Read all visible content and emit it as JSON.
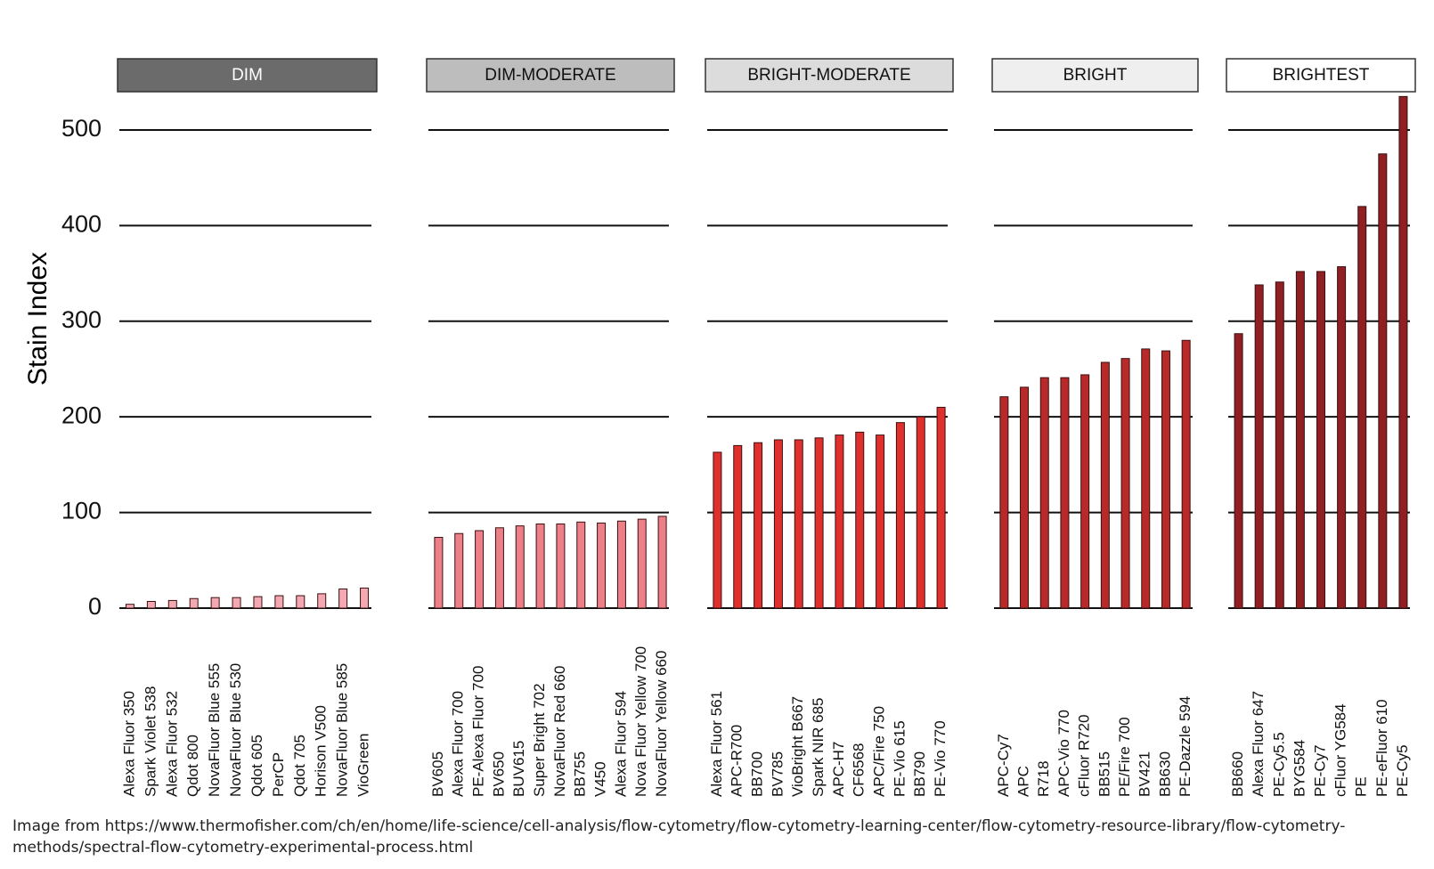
{
  "chart_data": [
    {
      "type": "bar",
      "title": "DIM",
      "ylabel": "Stain Index",
      "color": "#f4a9b2",
      "categories": [
        "Alexa Fluor 350",
        "Spark Violet 538",
        "Alexa Fluor 532",
        "Qdot 800",
        "NovaFluor Blue 555",
        "NovaFluor Blue 530",
        "Qdot 605",
        "PerCP",
        "Qdot 705",
        "Horison V500",
        "NovaFluor Blue 585",
        "VioGreen"
      ],
      "values": [
        4,
        7,
        8,
        10,
        11,
        11,
        12,
        13,
        13,
        15,
        20,
        21
      ],
      "ylim": [
        0,
        540
      ],
      "yticks": [
        0,
        100,
        200,
        300,
        400,
        500
      ],
      "grid": true
    },
    {
      "type": "bar",
      "title": "DIM-MODERATE",
      "color": "#ec7f88",
      "categories": [
        "BV605",
        "Alexa Fluor 700",
        "PE-Alexa Fluor 700",
        "BV650",
        "BUV615",
        "Super Bright 702",
        "NovaFluor Red 660",
        "BB755",
        "V450",
        "Alexa Fluor 594",
        "Nova Fluor Yellow 700",
        "NovaFluor Yellow 660"
      ],
      "values": [
        74,
        78,
        81,
        84,
        86,
        88,
        88,
        90,
        89,
        91,
        93,
        96
      ],
      "ylim": [
        0,
        540
      ],
      "yticks": [
        0,
        100,
        200,
        300,
        400,
        500
      ],
      "grid": true
    },
    {
      "type": "bar",
      "title": "BRIGHT-MODERATE",
      "color": "#e0302e",
      "categories": [
        "Alexa Fluor 561",
        "APC-R700",
        "BB700",
        "BV785",
        "VioBright B667",
        "Spark NIR 685",
        "APC-H7",
        "CF6568",
        "APC/Fire 750",
        "PE-Vio 615",
        "BB790",
        "PE-Vio 770"
      ],
      "values": [
        163,
        170,
        173,
        176,
        176,
        178,
        181,
        184,
        181,
        194,
        200,
        210
      ],
      "ylim": [
        0,
        540
      ],
      "yticks": [
        0,
        100,
        200,
        300,
        400,
        500
      ],
      "grid": true
    },
    {
      "type": "bar",
      "title": "BRIGHT",
      "color": "#b82a2a",
      "categories": [
        "APC-Cy7",
        "APC",
        "R718",
        "APC-Vio 770",
        "cFluor R720",
        "BB515",
        "PE/Fire 700",
        "BV421",
        "BB630",
        "PE-Dazzle 594"
      ],
      "values": [
        221,
        231,
        241,
        241,
        244,
        257,
        261,
        271,
        269,
        280
      ],
      "ylim": [
        0,
        540
      ],
      "yticks": [
        0,
        100,
        200,
        300,
        400,
        500
      ],
      "grid": true
    },
    {
      "type": "bar",
      "title": "BRIGHTEST",
      "color": "#8f1f22",
      "categories": [
        "BB660",
        "Alexa Fluor 647",
        "PE-Cy5.5",
        "BYG584",
        "PE-Cy7",
        "cFluor YG584",
        "PE",
        "PE-eFluor 610",
        "PE-Cy5"
      ],
      "values": [
        287,
        338,
        341,
        352,
        352,
        357,
        420,
        475,
        535
      ],
      "ylim": [
        0,
        540
      ],
      "yticks": [
        0,
        100,
        200,
        300,
        400,
        500
      ],
      "grid": true
    }
  ],
  "caption": "Image from https://www.thermofisher.com/ch/en/home/life-science/cell-analysis/flow-cytometry/flow-cytometry-learning-center/flow-cytometry-resource-library/flow-cytometry-methods/spectral-flow-cytometry-experimental-process.html"
}
